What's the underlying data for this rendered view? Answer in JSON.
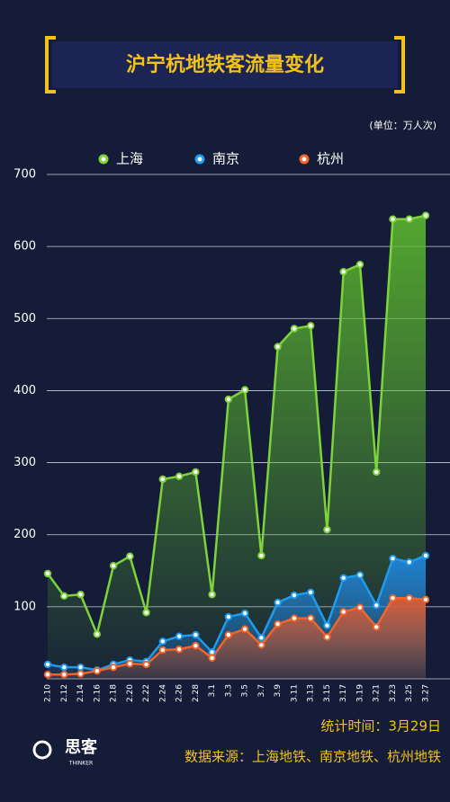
{
  "chart_data": {
    "type": "line",
    "title": "沪宁杭地铁客流量变化",
    "unit": "(单位：万人次)",
    "categories": [
      "2.10",
      "2.12",
      "2.14",
      "2.16",
      "2.18",
      "2.20",
      "2.22",
      "2.24",
      "2.26",
      "2.28",
      "3.1",
      "3.3",
      "3.5",
      "3.7",
      "3.9",
      "3.11",
      "3.13",
      "3.15",
      "3.17",
      "3.19",
      "3.21",
      "3.23",
      "3.25",
      "3.27"
    ],
    "series": [
      {
        "name": "上海",
        "color": "#7ed23a",
        "values": [
          146,
          115,
          117,
          62,
          157,
          170,
          92,
          277,
          281,
          287,
          117,
          388,
          401,
          171,
          461,
          486,
          490,
          207,
          565,
          575,
          287,
          638,
          638,
          643
        ]
      },
      {
        "name": "南京",
        "color": "#1e9bf0",
        "values": [
          20,
          16,
          16,
          12,
          20,
          26,
          24,
          52,
          59,
          61,
          37,
          86,
          91,
          57,
          106,
          116,
          120,
          74,
          140,
          144,
          102,
          167,
          162,
          171
        ]
      },
      {
        "name": "杭州",
        "color": "#f2642a",
        "values": [
          6,
          6,
          7,
          11,
          16,
          21,
          20,
          40,
          41,
          46,
          29,
          61,
          69,
          47,
          76,
          84,
          84,
          58,
          93,
          99,
          72,
          112,
          112,
          110
        ]
      }
    ],
    "ylim": [
      0,
      700
    ],
    "yticks": [
      100,
      200,
      300,
      400,
      500,
      600,
      700
    ],
    "grid": true,
    "stat_time": "统计时间：3月29日",
    "source": "数据来源：上海地铁、南京地铁、杭州地铁",
    "logo": "思客",
    "logo_sub": "THINKER"
  }
}
